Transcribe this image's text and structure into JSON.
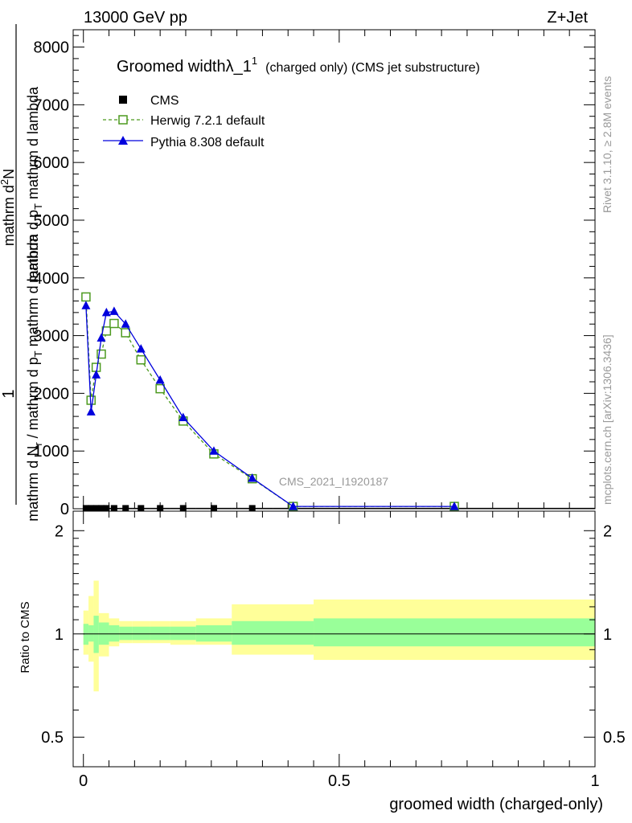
{
  "header": {
    "energy_label": "13000 GeV pp",
    "process_label": "Z+Jet"
  },
  "side_labels": {
    "rivet": "Rivet 3.1.10, ≥ 2.8M events",
    "mcplots": "mcplots.cern.ch [arXiv:1306.3436]"
  },
  "main_plot": {
    "title_main": "Groomed widthλ_1",
    "title_sup": "1",
    "title_rest": "(charged only) (CMS jet substructure)",
    "ylabel_top": "mathrm d",
    "ylabel_one": "1",
    "watermark": "CMS_2021_I1920187",
    "ylim": [
      0,
      8300
    ],
    "yticks": [
      {
        "value": 0,
        "label": "0"
      },
      {
        "value": 1000,
        "label": "1000"
      },
      {
        "value": 2000,
        "label": "2000"
      },
      {
        "value": 3000,
        "label": "3000"
      },
      {
        "value": 4000,
        "label": "4000"
      },
      {
        "value": 5000,
        "label": "5000"
      },
      {
        "value": 6000,
        "label": "6000"
      },
      {
        "value": 7000,
        "label": "7000"
      },
      {
        "value": 8000,
        "label": "8000"
      }
    ]
  },
  "legend": [
    {
      "key": "cms",
      "label": "CMS",
      "color": "#000000"
    },
    {
      "key": "herwig",
      "label": "Herwig 7.2.1 default",
      "color": "#4d9a1f"
    },
    {
      "key": "pythia",
      "label": "Pythia 8.308 default",
      "color": "#0000dd"
    }
  ],
  "ratio_plot": {
    "ylabel": "Ratio to CMS",
    "ylim": [
      0.41,
      2.28
    ],
    "yticks": [
      {
        "value": 0.5,
        "label": "0.5"
      },
      {
        "value": 1,
        "label": "1"
      },
      {
        "value": 2,
        "label": "2"
      }
    ]
  },
  "x_axis": {
    "label": "groomed width (charged-only)",
    "xlim": [
      -0.02,
      1.0
    ],
    "ticks": [
      {
        "value": 0,
        "label": "0"
      },
      {
        "value": 0.5,
        "label": "0.5"
      },
      {
        "value": 1,
        "label": "1"
      }
    ]
  },
  "chart_data": {
    "type": "line",
    "title": "Groomed widthλ_1 1 (charged only) (CMS jet substructure)",
    "xlabel": "groomed width (charged-only)",
    "ylabel": "1 / mathrm d N / mathrm d p_T mathrm d lambda",
    "bin_edges": [
      0,
      0.01,
      0.02,
      0.03,
      0.04,
      0.05,
      0.07,
      0.095,
      0.13,
      0.17,
      0.22,
      0.29,
      0.37,
      0.45,
      1.0
    ],
    "x": [
      0.005,
      0.015,
      0.025,
      0.035,
      0.045,
      0.06,
      0.0825,
      0.1125,
      0.15,
      0.195,
      0.255,
      0.33,
      0.41,
      0.725
    ],
    "series": [
      {
        "name": "CMS",
        "marker": "square",
        "color": "#000000",
        "values": [
          8,
          8,
          8,
          8,
          8,
          8,
          8,
          8,
          8,
          8,
          8,
          8,
          8,
          8
        ]
      },
      {
        "name": "Herwig 7.2.1 default",
        "marker": "open-square",
        "color": "#4d9a1f",
        "linestyle": "dashed",
        "values": [
          3670,
          1880,
          2450,
          2680,
          3080,
          3210,
          3050,
          2580,
          2080,
          1520,
          950,
          520,
          40,
          40
        ]
      },
      {
        "name": "Pythia 8.308 default",
        "marker": "triangle",
        "color": "#0000dd",
        "linestyle": "solid",
        "values": [
          3520,
          1680,
          2320,
          2960,
          3400,
          3420,
          3200,
          2770,
          2230,
          1580,
          1000,
          530,
          40,
          40
        ]
      }
    ],
    "ratio_bands": {
      "edges": [
        0,
        0.01,
        0.02,
        0.03,
        0.05,
        0.07,
        0.095,
        0.13,
        0.17,
        0.22,
        0.29,
        0.45,
        1.0
      ],
      "inner": [
        [
          0.93,
          1.07
        ],
        [
          0.95,
          1.06
        ],
        [
          0.88,
          1.13
        ],
        [
          0.93,
          1.08
        ],
        [
          0.95,
          1.06
        ],
        [
          0.96,
          1.05
        ],
        [
          0.96,
          1.05
        ],
        [
          0.96,
          1.05
        ],
        [
          0.96,
          1.05
        ],
        [
          0.95,
          1.06
        ],
        [
          0.93,
          1.09
        ],
        [
          0.92,
          1.11
        ]
      ],
      "outer": [
        [
          0.87,
          1.17
        ],
        [
          0.83,
          1.29
        ],
        [
          0.68,
          1.43
        ],
        [
          0.86,
          1.15
        ],
        [
          0.92,
          1.11
        ],
        [
          0.94,
          1.09
        ],
        [
          0.94,
          1.09
        ],
        [
          0.94,
          1.09
        ],
        [
          0.93,
          1.09
        ],
        [
          0.93,
          1.11
        ],
        [
          0.87,
          1.22
        ],
        [
          0.84,
          1.26
        ]
      ]
    },
    "ylim": [
      0,
      8300
    ],
    "ratio_ylim": [
      0.41,
      2.28
    ],
    "legend_position": "top-left",
    "grid": false
  }
}
